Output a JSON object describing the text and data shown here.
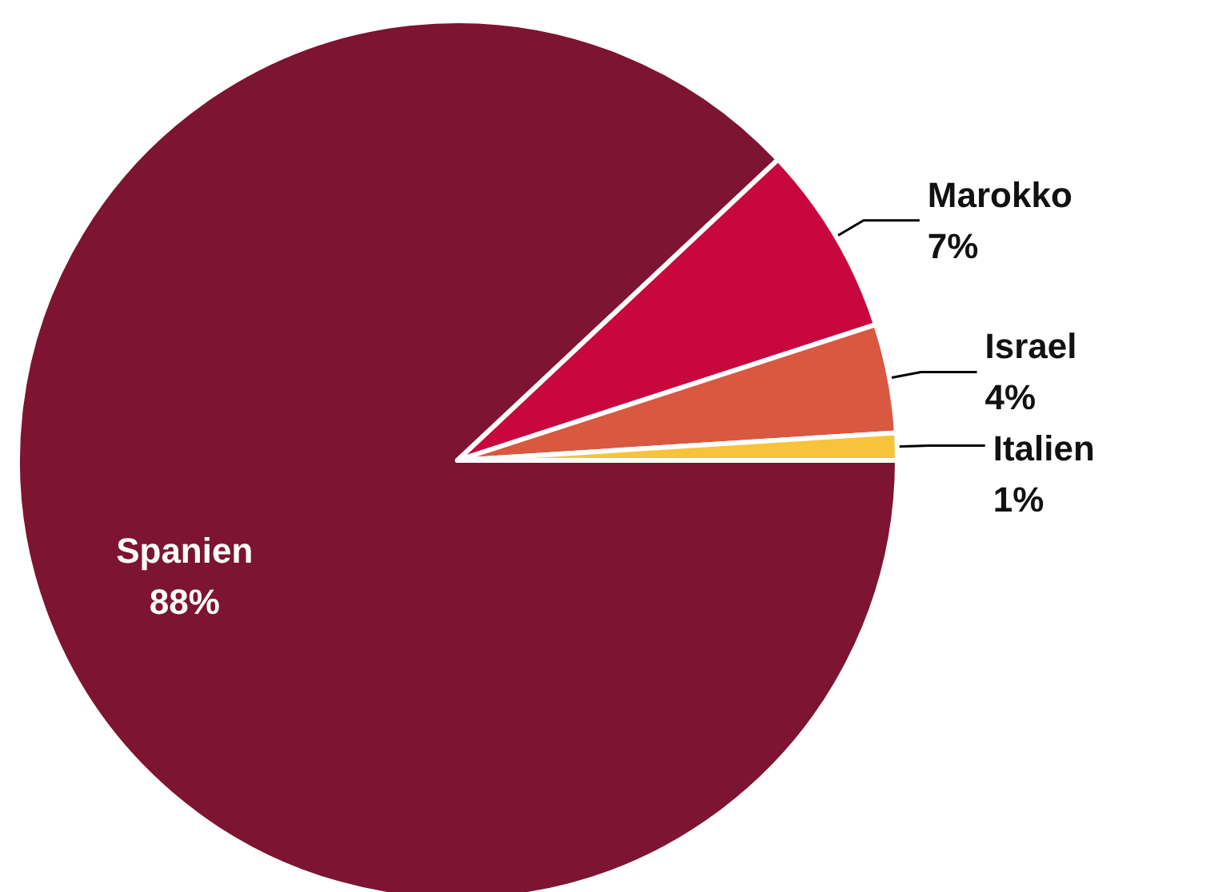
{
  "chart_data": {
    "type": "pie",
    "categories": [
      "Spanien",
      "Marokko",
      "Israel",
      "Italien"
    ],
    "values": [
      88,
      7,
      4,
      1
    ],
    "value_labels": [
      "88%",
      "7%",
      "4%",
      "1%"
    ],
    "colors": [
      "#7d1431",
      "#c9073f",
      "#d95840",
      "#f7c33b"
    ],
    "legend": false
  }
}
